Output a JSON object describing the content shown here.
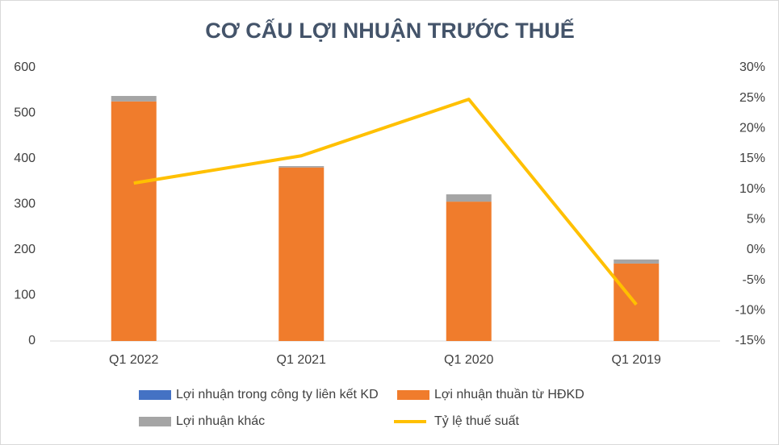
{
  "chart_data": {
    "type": "bar-line",
    "title": "CƠ CẤU LỢI NHUẬN TRƯỚC THUẾ",
    "categories": [
      "Q1 2022",
      "Q1 2021",
      "Q1 2020",
      "Q1 2019"
    ],
    "series": [
      {
        "name": "Lợi nhuận trong công ty liên kết KD",
        "color": "#4472c4",
        "type": "bar",
        "values": [
          0,
          0,
          0,
          0
        ]
      },
      {
        "name": "Lợi nhuận thuần từ HĐKD",
        "color": "#f07c2c",
        "type": "bar",
        "values": [
          526,
          381,
          306,
          170
        ]
      },
      {
        "name": "Lợi nhuận khác",
        "color": "#a5a5a5",
        "type": "bar",
        "values": [
          12,
          3,
          16,
          9
        ]
      },
      {
        "name": "Tỷ lệ thuế suất",
        "color": "#ffc000",
        "type": "line",
        "axis": "y2",
        "values": [
          11.0,
          15.5,
          24.8,
          -9.0
        ]
      }
    ],
    "ylim": [
      0,
      600
    ],
    "yticks": [
      0,
      100,
      200,
      300,
      400,
      500,
      600
    ],
    "y2lim": [
      -15,
      30
    ],
    "y2ticks": [
      {
        "value": -15,
        "label": "-15%"
      },
      {
        "value": -10,
        "label": "-10%"
      },
      {
        "value": -5,
        "label": "-5%"
      },
      {
        "value": 0,
        "label": "0%"
      },
      {
        "value": 5,
        "label": "5%"
      },
      {
        "value": 10,
        "label": "10%"
      },
      {
        "value": 15,
        "label": "15%"
      },
      {
        "value": 20,
        "label": "20%"
      },
      {
        "value": 25,
        "label": "25%"
      },
      {
        "value": 30,
        "label": "30%"
      }
    ],
    "grid": false
  }
}
